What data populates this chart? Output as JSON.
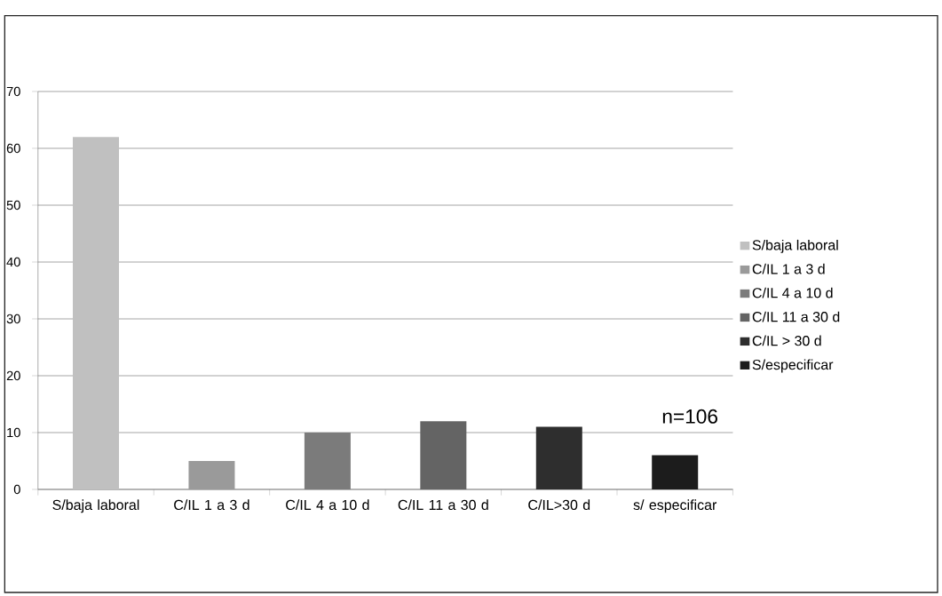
{
  "chart_data": {
    "type": "bar",
    "categories": [
      "S/baja laboral",
      "C/IL 1 a 3 d",
      "C/IL 4 a 10 d",
      "C/IL 11 a 30 d",
      "C/IL>30 d",
      "s/ especificar"
    ],
    "series": [
      {
        "name": "S/baja laboral",
        "color": "#c0c0c0",
        "values": [
          62,
          null,
          null,
          null,
          null,
          null
        ]
      },
      {
        "name": "C/IL 1 a 3 d",
        "color": "#9a9a9a",
        "values": [
          null,
          5,
          null,
          null,
          null,
          null
        ]
      },
      {
        "name": "C/IL 4 a 10 d",
        "color": "#7b7b7b",
        "values": [
          null,
          null,
          10,
          null,
          null,
          null
        ]
      },
      {
        "name": "C/IL 11 a 30 d",
        "color": "#646464",
        "values": [
          null,
          null,
          null,
          12,
          null,
          null
        ]
      },
      {
        "name": "C/IL > 30 d",
        "color": "#2e2e2e",
        "values": [
          null,
          null,
          null,
          null,
          11,
          null
        ]
      },
      {
        "name": "S/especificar",
        "color": "#1c1c1c",
        "values": [
          null,
          null,
          null,
          null,
          null,
          6
        ]
      }
    ],
    "ylim": [
      0,
      70
    ],
    "yticks": [
      0,
      10,
      20,
      30,
      40,
      50,
      60,
      70
    ],
    "grid": "y",
    "legend": "right",
    "annotations": [
      "n=106"
    ]
  }
}
